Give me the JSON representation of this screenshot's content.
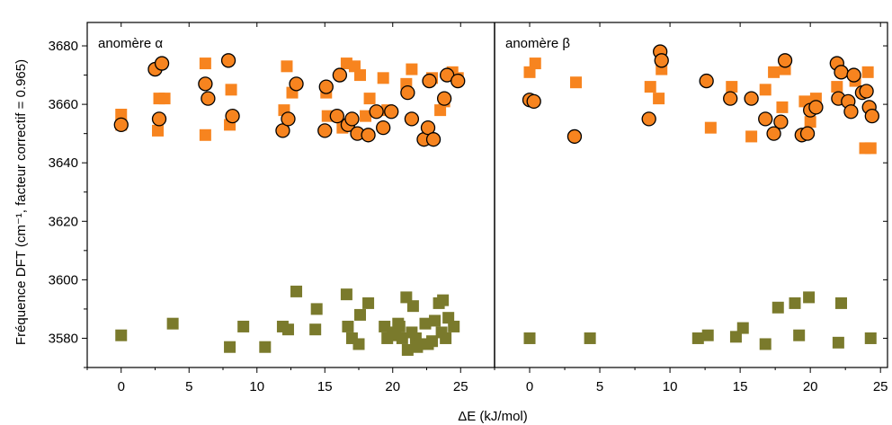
{
  "chart_data": {
    "type": "scatter",
    "xlabel": "ΔE (kJ/mol)",
    "ylabel": "Fréquence DFT (cm⁻¹, facteur correctif = 0.965)",
    "ylim": [
      3570,
      3688
    ],
    "yticks": [
      3580,
      3600,
      3620,
      3640,
      3660,
      3680
    ],
    "xticks": [
      0,
      5,
      10,
      15,
      20,
      25
    ],
    "grid": false,
    "colors": {
      "orange_square": "#F7841F",
      "orange_circle": "#F7841F",
      "olive_square": "#7A7A2C"
    },
    "panels": [
      {
        "label": "anomère α",
        "xlim": [
          -2.5,
          27.5
        ],
        "series": [
          {
            "marker": "orange-square",
            "points": [
              [
                0,
                3656.5
              ],
              [
                0,
                3653
              ],
              [
                2.7,
                3651
              ],
              [
                2.8,
                3662
              ],
              [
                3.2,
                3662
              ],
              [
                6.2,
                3649.5
              ],
              [
                6.2,
                3674
              ],
              [
                8.0,
                3653
              ],
              [
                8.1,
                3665
              ],
              [
                12.0,
                3658
              ],
              [
                12.2,
                3673
              ],
              [
                12.6,
                3664
              ],
              [
                15.1,
                3664
              ],
              [
                15.2,
                3656
              ],
              [
                16.6,
                3674
              ],
              [
                17.2,
                3673
              ],
              [
                17.6,
                3670
              ],
              [
                18.0,
                3656
              ],
              [
                18.3,
                3662
              ],
              [
                19.3,
                3669
              ],
              [
                19.6,
                3658
              ],
              [
                21.4,
                3672
              ],
              [
                22.4,
                3648
              ],
              [
                22.9,
                3669
              ],
              [
                23.5,
                3658
              ],
              [
                23.8,
                3661
              ],
              [
                24.4,
                3671
              ],
              [
                24.8,
                3669
              ],
              [
                21.0,
                3667
              ],
              [
                16.3,
                3652
              ]
            ]
          },
          {
            "marker": "orange-circle",
            "points": [
              [
                0,
                3653
              ],
              [
                2.5,
                3672
              ],
              [
                2.8,
                3655
              ],
              [
                3.0,
                3674
              ],
              [
                6.2,
                3667
              ],
              [
                6.4,
                3662
              ],
              [
                7.9,
                3675
              ],
              [
                8.2,
                3656
              ],
              [
                11.9,
                3651
              ],
              [
                12.3,
                3655
              ],
              [
                12.9,
                3667
              ],
              [
                15.0,
                3651
              ],
              [
                15.1,
                3666
              ],
              [
                15.9,
                3656
              ],
              [
                16.1,
                3670
              ],
              [
                16.7,
                3653
              ],
              [
                17.0,
                3655
              ],
              [
                17.4,
                3650
              ],
              [
                18.2,
                3649.5
              ],
              [
                18.8,
                3657.5
              ],
              [
                19.3,
                3652
              ],
              [
                19.9,
                3657.5
              ],
              [
                21.1,
                3664
              ],
              [
                21.4,
                3655
              ],
              [
                22.3,
                3648
              ],
              [
                22.6,
                3652
              ],
              [
                22.7,
                3668
              ],
              [
                23.0,
                3648
              ],
              [
                23.8,
                3662
              ],
              [
                24.0,
                3670
              ],
              [
                24.8,
                3668
              ]
            ]
          },
          {
            "marker": "olive-square",
            "points": [
              [
                0,
                3581
              ],
              [
                3.8,
                3585
              ],
              [
                8.0,
                3577
              ],
              [
                9.0,
                3584
              ],
              [
                10.6,
                3577
              ],
              [
                11.9,
                3584
              ],
              [
                12.3,
                3583
              ],
              [
                12.9,
                3596
              ],
              [
                14.3,
                3583
              ],
              [
                14.4,
                3590
              ],
              [
                16.6,
                3595
              ],
              [
                16.7,
                3584
              ],
              [
                17.0,
                3580
              ],
              [
                17.5,
                3578
              ],
              [
                17.6,
                3588
              ],
              [
                18.2,
                3592
              ],
              [
                19.4,
                3584
              ],
              [
                19.6,
                3580
              ],
              [
                20.0,
                3582
              ],
              [
                20.2,
                3581
              ],
              [
                20.5,
                3584
              ],
              [
                20.7,
                3580
              ],
              [
                21.0,
                3594
              ],
              [
                21.1,
                3576
              ],
              [
                21.4,
                3582
              ],
              [
                21.5,
                3591
              ],
              [
                21.7,
                3580
              ],
              [
                22.0,
                3578
              ],
              [
                22.4,
                3585
              ],
              [
                22.6,
                3578
              ],
              [
                22.9,
                3579
              ],
              [
                23.1,
                3586
              ],
              [
                23.4,
                3592
              ],
              [
                23.6,
                3582
              ],
              [
                23.7,
                3593
              ],
              [
                23.9,
                3580
              ],
              [
                24.1,
                3587
              ],
              [
                24.5,
                3584
              ],
              [
                20.4,
                3585
              ],
              [
                21.8,
                3577
              ]
            ]
          }
        ]
      },
      {
        "label": "anomère β",
        "xlim": [
          -2.5,
          25.5
        ],
        "series": [
          {
            "marker": "orange-square",
            "points": [
              [
                0,
                3671
              ],
              [
                0.4,
                3674
              ],
              [
                3.3,
                3667.5
              ],
              [
                8.6,
                3666
              ],
              [
                9.2,
                3662
              ],
              [
                9.4,
                3672
              ],
              [
                12.9,
                3652
              ],
              [
                14.4,
                3666
              ],
              [
                15.8,
                3649
              ],
              [
                16.8,
                3665
              ],
              [
                17.4,
                3671
              ],
              [
                18.0,
                3659
              ],
              [
                18.2,
                3672
              ],
              [
                19.6,
                3661
              ],
              [
                20.0,
                3654
              ],
              [
                20.4,
                3662
              ],
              [
                21.9,
                3666
              ],
              [
                23.2,
                3668
              ],
              [
                23.9,
                3645
              ],
              [
                24.1,
                3671
              ],
              [
                24.3,
                3645
              ]
            ]
          },
          {
            "marker": "orange-circle",
            "points": [
              [
                0,
                3661.5
              ],
              [
                0.3,
                3661
              ],
              [
                3.2,
                3649
              ],
              [
                8.5,
                3655
              ],
              [
                9.3,
                3678
              ],
              [
                9.4,
                3675
              ],
              [
                12.6,
                3668
              ],
              [
                14.3,
                3662
              ],
              [
                15.8,
                3662
              ],
              [
                16.8,
                3655
              ],
              [
                17.4,
                3650
              ],
              [
                17.9,
                3654
              ],
              [
                18.2,
                3675
              ],
              [
                19.4,
                3649.5
              ],
              [
                19.8,
                3650
              ],
              [
                20.0,
                3658
              ],
              [
                20.4,
                3659
              ],
              [
                21.9,
                3674
              ],
              [
                22.0,
                3662
              ],
              [
                22.2,
                3671
              ],
              [
                22.7,
                3661
              ],
              [
                22.9,
                3657.5
              ],
              [
                23.1,
                3670
              ],
              [
                23.7,
                3664
              ],
              [
                24.0,
                3664.5
              ],
              [
                24.2,
                3659
              ],
              [
                24.4,
                3656
              ]
            ]
          },
          {
            "marker": "olive-square",
            "points": [
              [
                0,
                3580
              ],
              [
                4.3,
                3580
              ],
              [
                12.0,
                3580
              ],
              [
                12.7,
                3581
              ],
              [
                14.7,
                3580.5
              ],
              [
                15.2,
                3583.5
              ],
              [
                16.8,
                3578
              ],
              [
                17.7,
                3590.5
              ],
              [
                18.9,
                3592
              ],
              [
                19.2,
                3581
              ],
              [
                19.9,
                3594
              ],
              [
                22.0,
                3578.5
              ],
              [
                22.2,
                3592
              ],
              [
                24.3,
                3580
              ]
            ]
          }
        ]
      }
    ]
  }
}
